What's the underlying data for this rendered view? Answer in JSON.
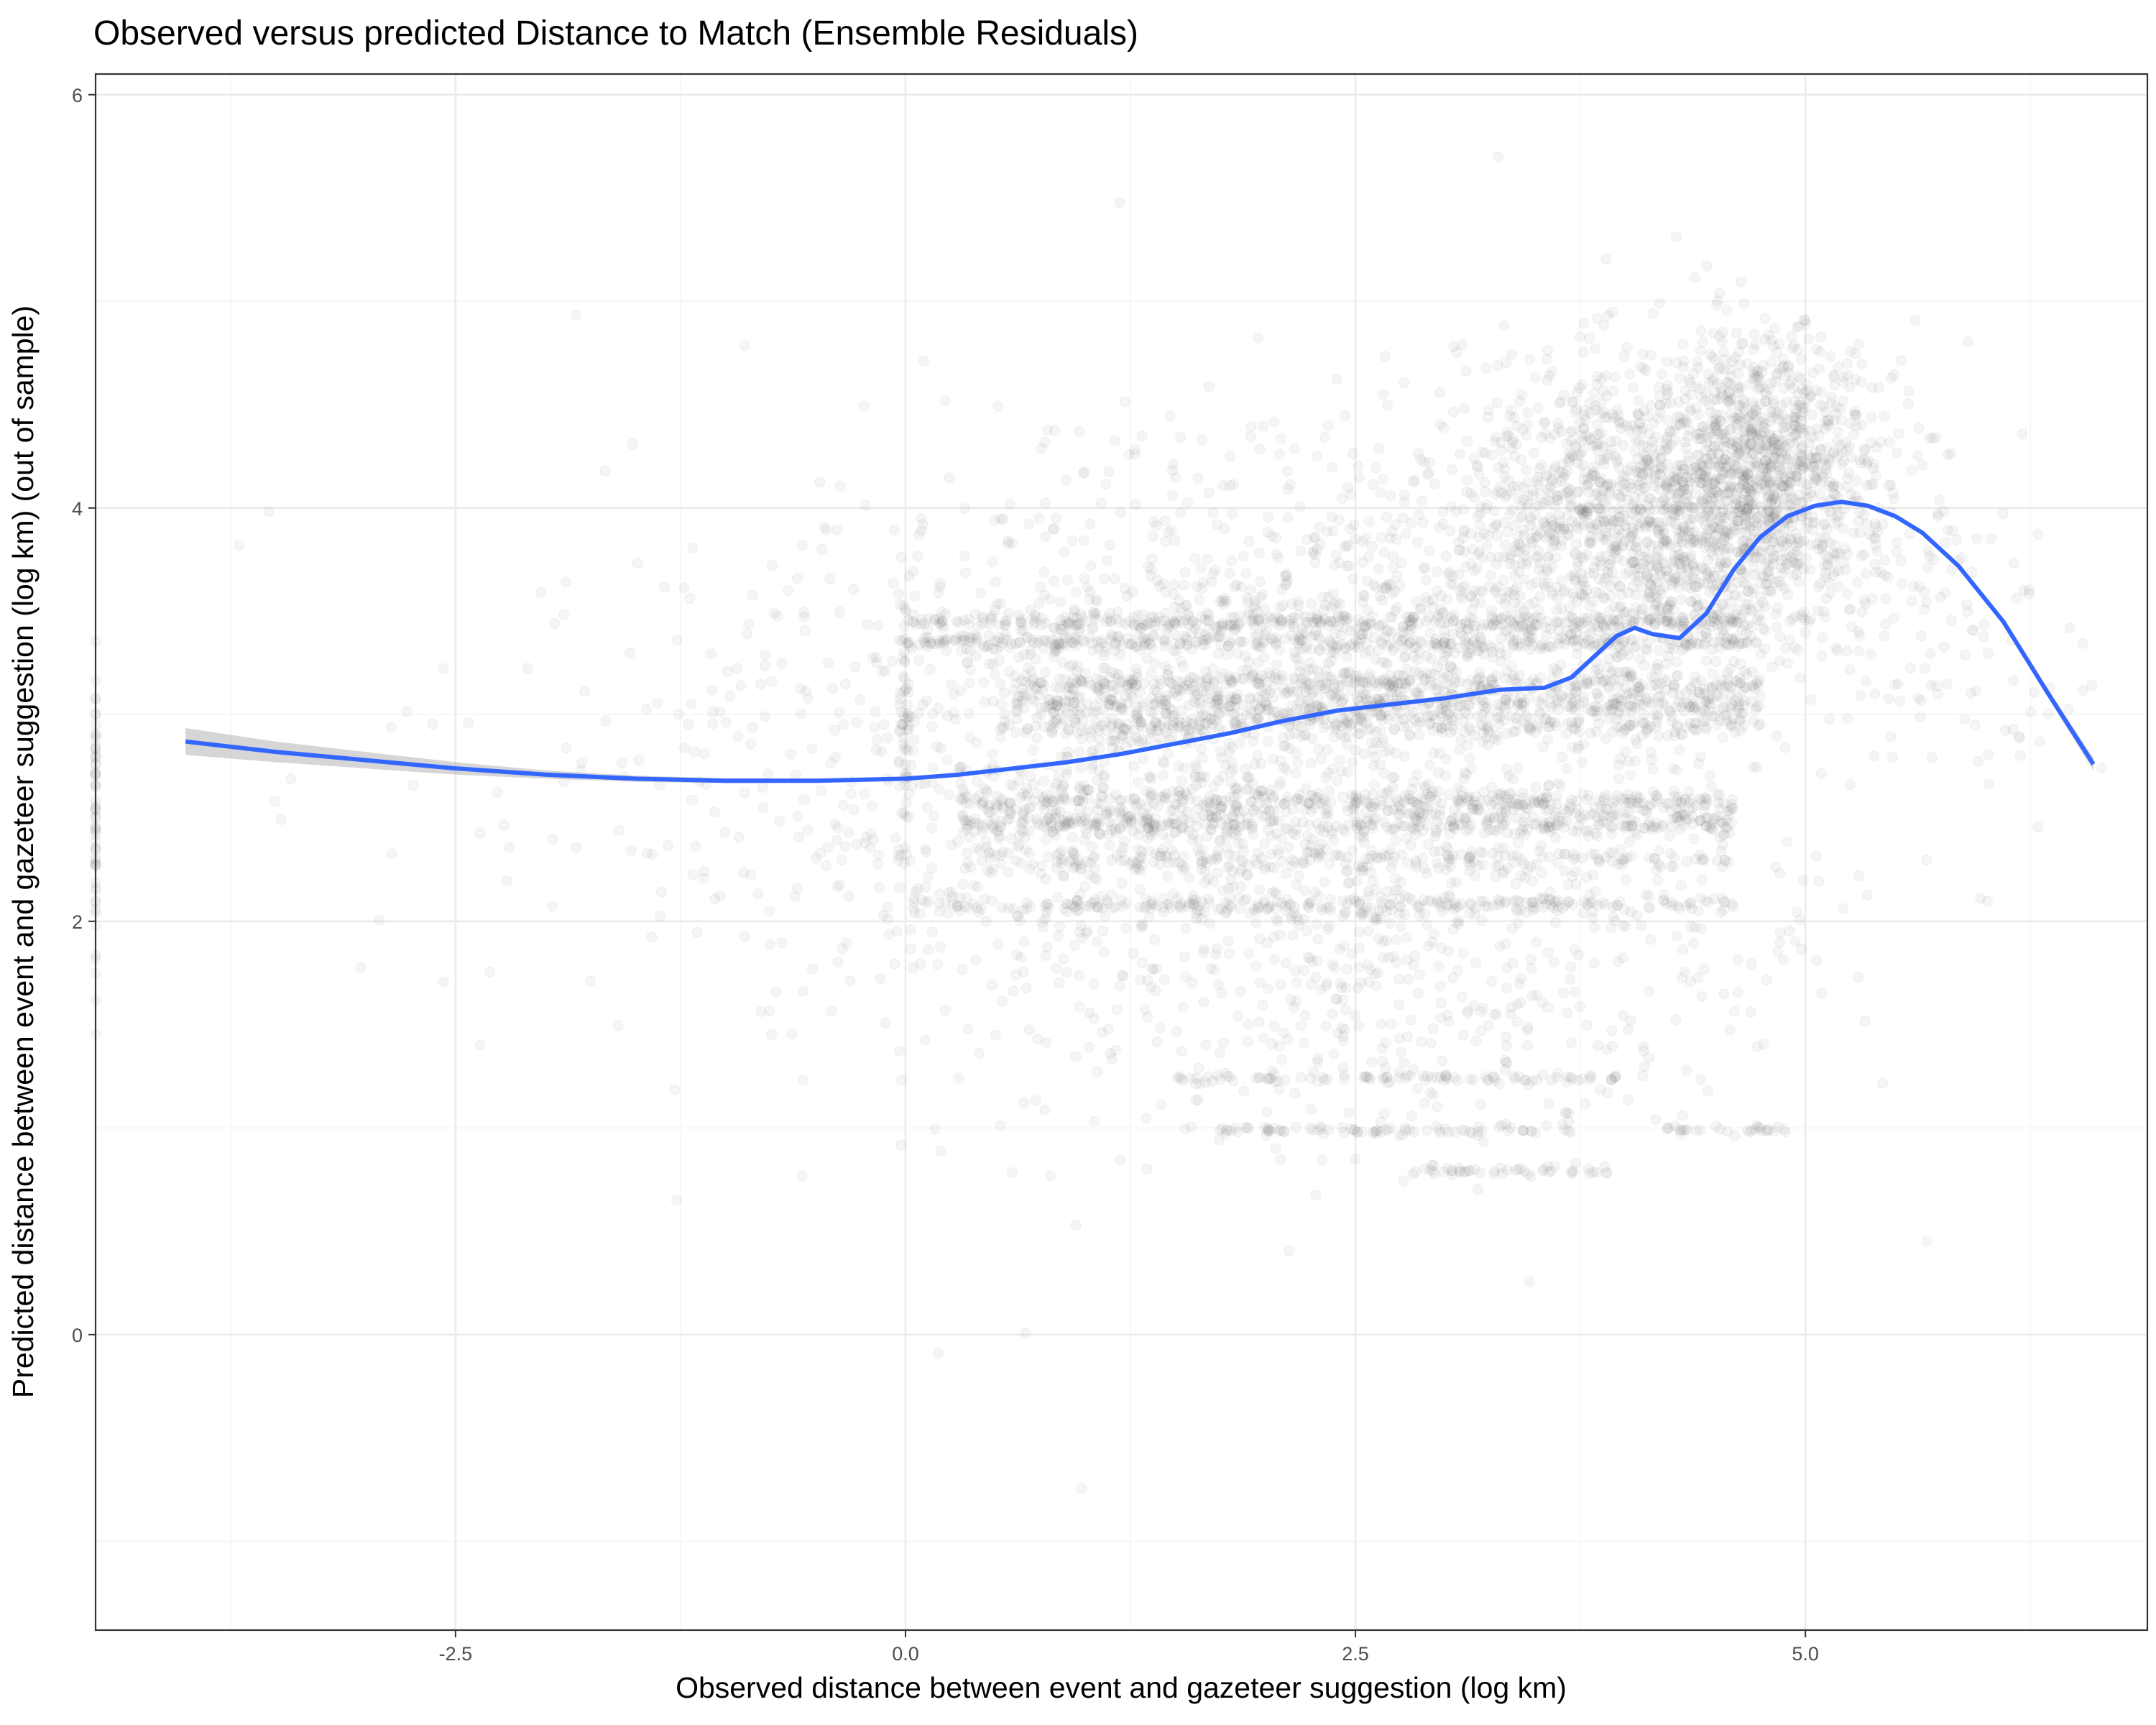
{
  "chart_data": {
    "type": "scatter",
    "title": "Observed versus predicted Distance to Match (Ensemble Residuals)",
    "xlabel": "Observed distance between event and gazeteer suggestion (log km)",
    "ylabel": "Predicted distance between event and gazeteer suggestion (log km) (out of sample)",
    "xlim": [
      -4.5,
      6.9
    ],
    "ylim": [
      -1.43,
      6.1
    ],
    "x_ticks": [
      -2.5,
      0.0,
      2.5,
      5.0
    ],
    "x_tick_labels": [
      "-2.5",
      "0.0",
      "2.5",
      "5.0"
    ],
    "y_ticks": [
      0,
      2,
      4,
      6
    ],
    "y_tick_labels": [
      "0",
      "2",
      "4",
      "6"
    ],
    "grid": true,
    "point_color": "#333333",
    "point_alpha": 0.05,
    "smooth_color": "#3366ff",
    "ribbon_color": "#999999",
    "smooth_line": {
      "name": "",
      "x": [
        -4.0,
        -3.5,
        -3.0,
        -2.5,
        -2.0,
        -1.5,
        -1.0,
        -0.5,
        0.0,
        0.3,
        0.6,
        0.9,
        1.2,
        1.5,
        1.8,
        2.1,
        2.4,
        2.7,
        3.0,
        3.3,
        3.55,
        3.7,
        3.85,
        3.95,
        4.05,
        4.15,
        4.3,
        4.45,
        4.6,
        4.75,
        4.9,
        5.05,
        5.2,
        5.35,
        5.5,
        5.65,
        5.85,
        6.1,
        6.35,
        6.6
      ],
      "y": [
        2.87,
        2.82,
        2.78,
        2.74,
        2.71,
        2.69,
        2.68,
        2.68,
        2.69,
        2.71,
        2.74,
        2.77,
        2.81,
        2.86,
        2.91,
        2.97,
        3.02,
        3.05,
        3.08,
        3.12,
        3.13,
        3.18,
        3.3,
        3.38,
        3.42,
        3.39,
        3.37,
        3.49,
        3.7,
        3.86,
        3.96,
        4.01,
        4.03,
        4.01,
        3.96,
        3.88,
        3.72,
        3.45,
        3.1,
        2.76
      ]
    },
    "ribbon_halfwidth": [
      0.065,
      0.05,
      0.04,
      0.03,
      0.02,
      0.015,
      0.012,
      0.01,
      0.008,
      0.008,
      0.008,
      0.008,
      0.008,
      0.008,
      0.008,
      0.008,
      0.008,
      0.008,
      0.008,
      0.008,
      0.008,
      0.008,
      0.008,
      0.008,
      0.008,
      0.008,
      0.008,
      0.008,
      0.008,
      0.008,
      0.008,
      0.008,
      0.008,
      0.008,
      0.008,
      0.01,
      0.012,
      0.015,
      0.02,
      0.03
    ],
    "point_clusters": [
      {
        "x": [
          0.0,
          4.75
        ],
        "y": 3.45,
        "n": 320,
        "sx": 0,
        "sy": 0.02
      },
      {
        "x": [
          0.0,
          4.75
        ],
        "y": 3.35,
        "n": 320,
        "sx": 0,
        "sy": 0.02
      },
      {
        "x": [
          0.6,
          4.75
        ],
        "y": 3.15,
        "n": 320,
        "sx": 0,
        "sy": 0.03
      },
      {
        "x": [
          0.6,
          4.75
        ],
        "y": 3.05,
        "n": 320,
        "sx": 0,
        "sy": 0.03
      },
      {
        "x": [
          0.8,
          4.75
        ],
        "y": 2.95,
        "n": 250,
        "sx": 0,
        "sy": 0.03
      },
      {
        "x": [
          0.3,
          4.6
        ],
        "y": 2.58,
        "n": 350,
        "sx": 0,
        "sy": 0.03
      },
      {
        "x": [
          0.3,
          4.6
        ],
        "y": 2.47,
        "n": 350,
        "sx": 0,
        "sy": 0.03
      },
      {
        "x": [
          0.3,
          4.6
        ],
        "y": 2.3,
        "n": 200,
        "sx": 0,
        "sy": 0.03
      },
      {
        "x": [
          0.0,
          4.6
        ],
        "y": 2.08,
        "n": 220,
        "sx": 0,
        "sy": 0.02
      },
      {
        "x": [
          1.5,
          4.0
        ],
        "y": 1.24,
        "n": 90,
        "sx": 0,
        "sy": 0.01
      },
      {
        "x": [
          1.5,
          3.7
        ],
        "y": 0.99,
        "n": 80,
        "sx": 0,
        "sy": 0.01
      },
      {
        "x": [
          2.8,
          3.9
        ],
        "y": 0.79,
        "n": 50,
        "sx": 0,
        "sy": 0.01
      },
      {
        "x": [
          4.2,
          4.9
        ],
        "y": 0.99,
        "n": 30,
        "sx": 0,
        "sy": 0.01
      },
      {
        "cx": 4.1,
        "cy": 3.95,
        "n": 1400,
        "sx": 0.5,
        "sy": 0.38
      },
      {
        "cx": 4.8,
        "cy": 4.2,
        "n": 800,
        "sx": 0.28,
        "sy": 0.32
      },
      {
        "cx": 2.8,
        "cy": 3.55,
        "n": 350,
        "sx": 0.75,
        "sy": 0.45
      },
      {
        "cx": 2.0,
        "cy": 2.9,
        "n": 900,
        "sx": 1.1,
        "sy": 0.6
      },
      {
        "cx": 1.0,
        "cy": 2.7,
        "n": 600,
        "sx": 1.2,
        "sy": 0.7
      },
      {
        "cx": 3.3,
        "cy": 2.0,
        "n": 300,
        "sx": 0.9,
        "sy": 0.45
      },
      {
        "cx": 2.6,
        "cy": 1.4,
        "n": 130,
        "sx": 1.1,
        "sy": 0.3
      },
      {
        "cx": 5.4,
        "cy": 3.7,
        "n": 120,
        "sx": 0.35,
        "sy": 0.5
      },
      {
        "cx": -0.6,
        "cy": 2.7,
        "n": 160,
        "sx": 1.2,
        "sy": 0.7
      },
      {
        "cx": 6.1,
        "cy": 3.3,
        "n": 50,
        "sx": 0.25,
        "sy": 0.5
      },
      {
        "cx": -4.5,
        "cy": 2.6,
        "n": 60,
        "sx": 0.0,
        "sy": 0.45
      },
      {
        "cx": 0.0,
        "cy": 2.9,
        "n": 60,
        "sx": 0.02,
        "sy": 0.35
      },
      {
        "cx": 2.2,
        "cy": 2.5,
        "n": 80,
        "sx": 2.0,
        "sy": 1.2
      }
    ]
  }
}
